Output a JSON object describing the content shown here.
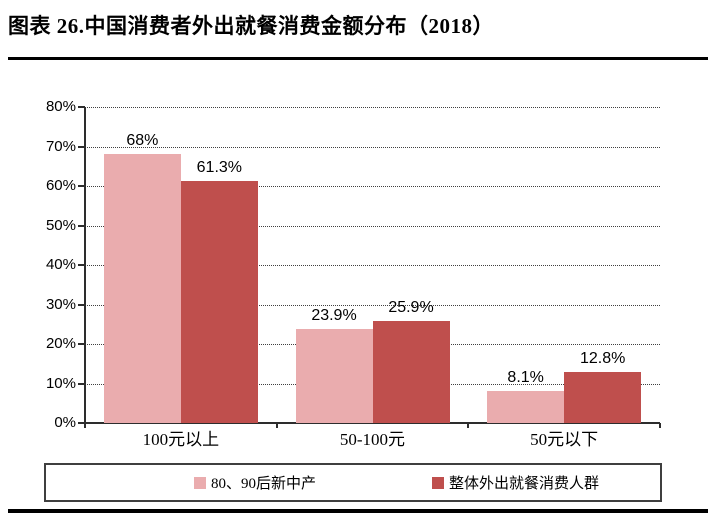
{
  "title": "图表 26.中国消费者外出就餐消费金额分布（2018）",
  "colors": {
    "series1": "#EAACAE",
    "series2": "#BF4F4D",
    "axis": "#2d2d2d",
    "gridline": "#404040",
    "title_rule": "#000000"
  },
  "chart_data": {
    "type": "bar",
    "categories": [
      "100元以上",
      "50-100元",
      "50元以下"
    ],
    "series": [
      {
        "name": "80、90后新中产",
        "color_key": "series1",
        "values": [
          68,
          23.9,
          8.1
        ],
        "value_labels": [
          "68%",
          "23.9%",
          "8.1%"
        ]
      },
      {
        "name": "整体外出就餐消费人群",
        "color_key": "series2",
        "values": [
          61.3,
          25.9,
          12.8
        ],
        "value_labels": [
          "61.3%",
          "25.9%",
          "12.8%"
        ]
      }
    ],
    "ylim": [
      0,
      80
    ],
    "ytick_step": 10,
    "ytick_labels": [
      "0%",
      "10%",
      "20%",
      "30%",
      "40%",
      "50%",
      "60%",
      "70%",
      "80%"
    ],
    "grid": "horizontal-dotted",
    "legend_position": "bottom-box"
  }
}
